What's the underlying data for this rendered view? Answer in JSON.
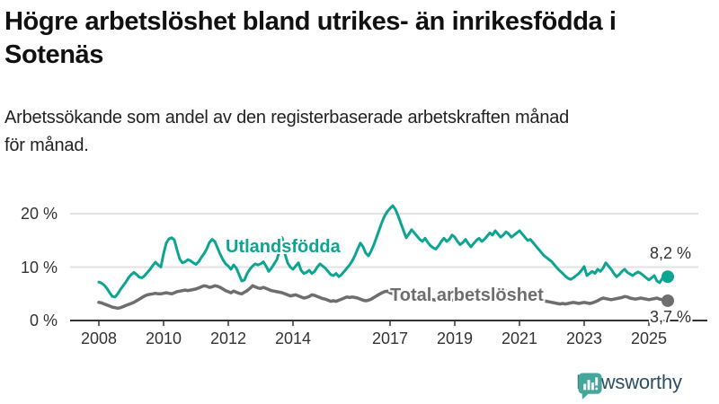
{
  "header": {
    "title_lines": [
      "Högre arbetslöshet bland utrikes- än inrikesfödda i",
      "Sotenäs"
    ],
    "subtitle_lines": [
      "Arbetssökande som andel av den registerbaserade arbetskraften månad",
      "för månad."
    ]
  },
  "chart_data": {
    "type": "line",
    "title": "Högre arbetslöshet bland utrikes- än inrikesfödda i Sotenäs",
    "subtitle": "Arbetssökande som andel av den registerbaserade arbetskraften månad för månad.",
    "unit": "%",
    "frequency": "monthly",
    "x_start": "2008-01",
    "x_end": "2025-08",
    "x_tick_years": [
      2008,
      2010,
      2012,
      2014,
      2017,
      2019,
      2021,
      2023,
      2025
    ],
    "y_ticks": [
      {
        "value": 0,
        "label": "0 %"
      },
      {
        "value": 10,
        "label": "10 %"
      },
      {
        "value": 20,
        "label": "20 %"
      }
    ],
    "ylim": [
      0,
      23
    ],
    "grid": true,
    "colors": {
      "accent_teal": "#0ca591",
      "gray": "#6e6e6e",
      "axis": "#333333",
      "gridline": "#e2e2e2"
    },
    "series": [
      {
        "name": "Utlandsfödda",
        "color": "#0ca591",
        "end_label": "8,2 %",
        "end_value": 8.2,
        "values": [
          7.2,
          7.0,
          6.6,
          6.0,
          5.2,
          4.5,
          4.4,
          5.0,
          5.8,
          6.5,
          7.2,
          8.0,
          8.6,
          9.0,
          8.6,
          8.1,
          8.0,
          8.4,
          9.0,
          9.6,
          10.3,
          10.9,
          10.4,
          10.0,
          12.5,
          14.5,
          15.3,
          15.5,
          15.1,
          13.2,
          11.5,
          10.8,
          11.0,
          11.4,
          11.2,
          10.8,
          10.5,
          11.0,
          11.8,
          12.5,
          13.4,
          14.6,
          15.2,
          14.8,
          13.6,
          12.4,
          11.4,
          10.6,
          10.2,
          9.6,
          10.4,
          9.8,
          8.6,
          7.4,
          7.6,
          8.8,
          9.6,
          10.2,
          10.6,
          10.4,
          10.6,
          11.0,
          10.2,
          9.2,
          9.8,
          10.6,
          11.4,
          13.0,
          15.5,
          12.5,
          10.8,
          10.0,
          9.6,
          10.2,
          10.8,
          9.4,
          8.8,
          9.0,
          9.4,
          8.8,
          9.2,
          10.0,
          10.6,
          10.2,
          9.8,
          9.2,
          8.6,
          8.4,
          8.8,
          8.2,
          8.6,
          9.2,
          9.8,
          10.4,
          11.2,
          12.2,
          13.4,
          14.5,
          13.8,
          12.6,
          12.1,
          13.0,
          14.2,
          15.6,
          17.0,
          18.4,
          19.6,
          20.4,
          21.0,
          21.5,
          20.8,
          19.6,
          18.2,
          16.8,
          15.5,
          16.2,
          17.0,
          16.4,
          15.8,
          15.2,
          14.8,
          15.4,
          14.6,
          14.0,
          13.6,
          13.4,
          14.0,
          14.8,
          15.4,
          14.8,
          15.2,
          16.0,
          15.6,
          14.8,
          14.2,
          14.6,
          15.2,
          14.4,
          13.8,
          14.4,
          15.0,
          15.4,
          14.8,
          15.2,
          15.8,
          16.4,
          16.0,
          16.8,
          16.2,
          15.6,
          16.0,
          16.6,
          16.2,
          15.6,
          16.0,
          16.4,
          16.8,
          16.2,
          15.6,
          15.0,
          15.2,
          14.6,
          14.0,
          13.4,
          12.8,
          12.2,
          11.8,
          11.4,
          11.0,
          10.4,
          9.8,
          9.3,
          8.8,
          8.3,
          7.9,
          7.7,
          8.0,
          8.4,
          8.8,
          9.4,
          10.1,
          8.4,
          8.8,
          9.2,
          8.8,
          9.6,
          9.2,
          9.8,
          10.8,
          10.2,
          9.6,
          8.8,
          8.2,
          8.6,
          9.2,
          9.6,
          9.0,
          8.7,
          8.4,
          8.8,
          9.1,
          8.8,
          8.4,
          8.0,
          7.6,
          8.0,
          8.4,
          7.4,
          7.1,
          7.9,
          7.6,
          8.2
        ]
      },
      {
        "name": "Total arbetslöshet",
        "color": "#6e6e6e",
        "end_label": "3,7 %",
        "end_value": 3.7,
        "values": [
          3.4,
          3.3,
          3.1,
          2.9,
          2.7,
          2.5,
          2.4,
          2.3,
          2.4,
          2.6,
          2.8,
          3.0,
          3.2,
          3.4,
          3.7,
          4.0,
          4.3,
          4.6,
          4.8,
          4.9,
          5.0,
          5.1,
          5.0,
          5.0,
          5.1,
          5.2,
          5.1,
          5.0,
          5.2,
          5.4,
          5.5,
          5.6,
          5.7,
          5.6,
          5.7,
          5.8,
          5.9,
          6.1,
          6.3,
          6.5,
          6.4,
          6.2,
          6.3,
          6.5,
          6.4,
          6.2,
          5.9,
          5.6,
          5.4,
          5.2,
          5.5,
          5.3,
          5.1,
          5.0,
          5.3,
          5.6,
          6.0,
          6.5,
          6.3,
          6.1,
          6.0,
          6.2,
          6.0,
          5.8,
          5.6,
          5.5,
          5.4,
          5.3,
          5.2,
          5.0,
          4.8,
          4.6,
          4.7,
          4.8,
          4.6,
          4.4,
          4.2,
          4.3,
          4.5,
          4.8,
          4.7,
          4.5,
          4.3,
          4.1,
          4.0,
          3.8,
          3.6,
          3.7,
          3.6,
          3.8,
          4.0,
          4.2,
          4.4,
          4.3,
          4.4,
          4.3,
          4.2,
          4.0,
          3.8,
          3.7,
          3.8,
          4.0,
          4.3,
          4.6,
          4.9,
          5.2,
          5.4,
          5.5,
          5.2,
          5.0,
          4.8,
          4.6,
          4.4,
          4.3,
          4.4,
          4.6,
          4.7,
          4.6,
          4.5,
          4.4,
          4.3,
          4.2,
          4.1,
          4.0,
          3.9,
          3.8,
          3.9,
          4.0,
          4.1,
          4.0,
          3.9,
          3.8,
          3.9,
          4.0,
          4.1,
          4.0,
          3.9,
          3.8,
          3.9,
          4.1,
          4.2,
          4.1,
          4.0,
          4.1,
          4.3,
          4.5,
          4.8,
          5.3,
          5.6,
          5.7,
          5.6,
          5.5,
          5.3,
          5.1,
          5.0,
          4.9,
          4.8,
          4.7,
          4.6,
          4.4,
          4.2,
          4.1,
          4.0,
          3.9,
          3.8,
          3.7,
          3.6,
          3.5,
          3.4,
          3.3,
          3.2,
          3.1,
          3.2,
          3.1,
          3.2,
          3.3,
          3.4,
          3.3,
          3.2,
          3.3,
          3.4,
          3.3,
          3.2,
          3.3,
          3.5,
          3.7,
          4.0,
          4.2,
          4.1,
          4.0,
          3.9,
          4.0,
          4.1,
          4.2,
          4.3,
          4.5,
          4.4,
          4.2,
          4.1,
          4.0,
          4.1,
          4.2,
          4.1,
          4.0,
          3.9,
          4.0,
          4.1,
          4.2,
          4.0,
          3.9,
          3.8,
          3.7
        ]
      }
    ]
  },
  "footer": {
    "brand": "Newsworthy"
  }
}
